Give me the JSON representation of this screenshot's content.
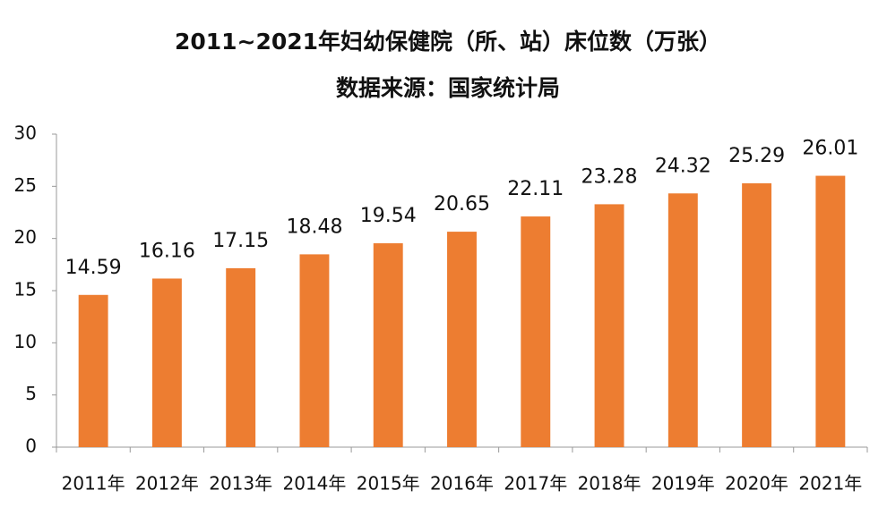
{
  "chart_data": {
    "type": "bar",
    "title": "2011~2021年妇幼保健院（所、站）床位数（万张）",
    "subtitle": "数据来源：国家统计局",
    "categories": [
      "2011年",
      "2012年",
      "2013年",
      "2014年",
      "2015年",
      "2016年",
      "2017年",
      "2018年",
      "2019年",
      "2020年",
      "2021年"
    ],
    "values": [
      14.59,
      16.16,
      17.15,
      18.48,
      19.54,
      20.65,
      22.11,
      23.28,
      24.32,
      25.29,
      26.01
    ],
    "color": "#ed7d31",
    "ylim": [
      0,
      30
    ],
    "yticks": [
      0,
      5,
      10,
      15,
      20,
      25,
      30
    ],
    "grid": false
  }
}
